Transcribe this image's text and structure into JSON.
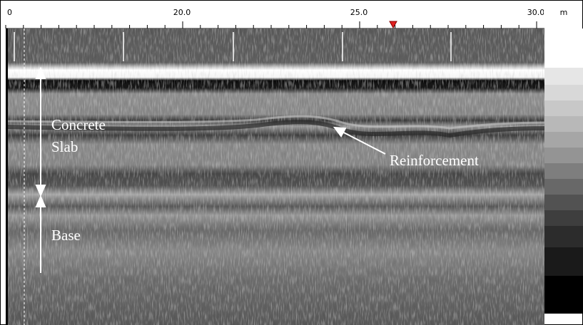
{
  "ruler": {
    "labels": [
      "0",
      "20.0",
      "25.0",
      "30.0"
    ],
    "unit": "m"
  },
  "annotations": {
    "slab_line1": "Concrete",
    "slab_line2": "Slab",
    "reinforcement": "Reinforcement",
    "base": "Base"
  }
}
